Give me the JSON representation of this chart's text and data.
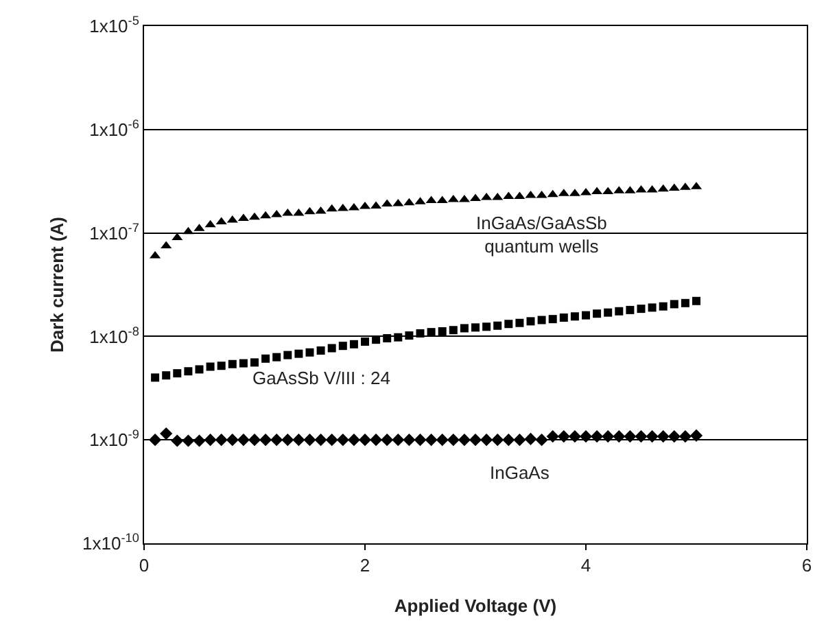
{
  "chart_data": {
    "type": "scatter",
    "xlabel": "Applied Voltage (V)",
    "ylabel": "Dark current (A)",
    "log": "y",
    "grid": "y",
    "legend": false,
    "x": [
      0.1,
      0.2,
      0.3,
      0.4,
      0.5,
      0.6,
      0.7,
      0.8,
      0.9,
      1.0,
      1.1,
      1.2,
      1.3,
      1.4,
      1.5,
      1.6,
      1.7,
      1.8,
      1.9,
      2.0,
      2.1,
      2.2,
      2.3,
      2.4,
      2.5,
      2.6,
      2.7,
      2.8,
      2.9,
      3.0,
      3.1,
      3.2,
      3.3,
      3.4,
      3.5,
      3.6,
      3.7,
      3.8,
      3.9,
      4.0,
      4.1,
      4.2,
      4.3,
      4.4,
      4.5,
      4.6,
      4.7,
      4.8,
      4.9,
      5.0
    ],
    "xlim": [
      0,
      6
    ],
    "xticks": [
      0,
      2,
      4,
      6
    ],
    "ylim": [
      1e-10,
      1e-05
    ],
    "yticks": [
      {
        "value": 1e-10,
        "label": "1x10$^{-10}$"
      },
      {
        "value": 1e-09,
        "label": "1x10$^{-9}$"
      },
      {
        "value": 1e-08,
        "label": "1x10$^{-8}$"
      },
      {
        "value": 1e-07,
        "label": "1x10$^{-7}$"
      },
      {
        "value": 1e-06,
        "label": "1x10$^{-6}$"
      },
      {
        "value": 1e-05,
        "label": "1x10$^{-5}$"
      }
    ],
    "series": [
      {
        "name": "InGaAs/GaAsSb\nquantum wells",
        "color": "#000000",
        "marker": "triangle",
        "values": [
          6e-08,
          7.5e-08,
          9e-08,
          1.03e-07,
          1.1e-07,
          1.2e-07,
          1.28e-07,
          1.33e-07,
          1.38e-07,
          1.42e-07,
          1.46e-07,
          1.5e-07,
          1.55e-07,
          1.55e-07,
          1.6e-07,
          1.62e-07,
          1.7e-07,
          1.72e-07,
          1.75e-07,
          1.8e-07,
          1.82e-07,
          1.9e-07,
          1.92e-07,
          1.95e-07,
          2e-07,
          2.05e-07,
          2.05e-07,
          2.1e-07,
          2.1e-07,
          2.15e-07,
          2.2e-07,
          2.2e-07,
          2.25e-07,
          2.25e-07,
          2.3e-07,
          2.3e-07,
          2.35e-07,
          2.4e-07,
          2.4e-07,
          2.45e-07,
          2.5e-07,
          2.5e-07,
          2.55e-07,
          2.55e-07,
          2.6e-07,
          2.6e-07,
          2.65e-07,
          2.7e-07,
          2.75e-07,
          2.8e-07
        ]
      },
      {
        "name": "GaAsSb V/III : 24",
        "color": "#000000",
        "marker": "square",
        "values": [
          4e-09,
          4.2e-09,
          4.4e-09,
          4.6e-09,
          4.8e-09,
          5.1e-09,
          5.2e-09,
          5.4e-09,
          5.5e-09,
          5.6e-09,
          6.1e-09,
          6.3e-09,
          6.6e-09,
          6.8e-09,
          7e-09,
          7.3e-09,
          7.7e-09,
          8.1e-09,
          8.4e-09,
          8.9e-09,
          9.3e-09,
          9.6e-09,
          9.8e-09,
          1.02e-08,
          1.07e-08,
          1.1e-08,
          1.12e-08,
          1.15e-08,
          1.2e-08,
          1.22e-08,
          1.24e-08,
          1.27e-08,
          1.32e-08,
          1.35e-08,
          1.4e-08,
          1.44e-08,
          1.47e-08,
          1.52e-08,
          1.56e-08,
          1.6e-08,
          1.66e-08,
          1.7e-08,
          1.75e-08,
          1.8e-08,
          1.85e-08,
          1.9e-08,
          1.95e-08,
          2.05e-08,
          2.1e-08,
          2.2e-08
        ]
      },
      {
        "name": "InGaAs",
        "color": "#000000",
        "marker": "diamond",
        "values": [
          1e-09,
          1.15e-09,
          9.8e-10,
          9.8e-10,
          9.8e-10,
          1e-09,
          1e-09,
          1e-09,
          1e-09,
          1e-09,
          1e-09,
          1e-09,
          1e-09,
          1e-09,
          1e-09,
          1e-09,
          1e-09,
          1e-09,
          1e-09,
          1e-09,
          1e-09,
          1e-09,
          1e-09,
          1e-09,
          1e-09,
          1e-09,
          1e-09,
          1e-09,
          1e-09,
          1e-09,
          1e-09,
          1e-09,
          1e-09,
          1e-09,
          1.02e-09,
          1e-09,
          1.08e-09,
          1.08e-09,
          1.08e-09,
          1.08e-09,
          1.08e-09,
          1.08e-09,
          1.08e-09,
          1.08e-09,
          1.08e-09,
          1.08e-09,
          1.08e-09,
          1.08e-09,
          1.08e-09,
          1.1e-09
        ]
      }
    ]
  }
}
